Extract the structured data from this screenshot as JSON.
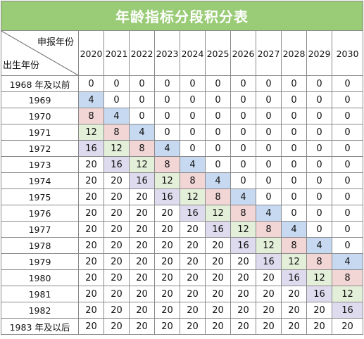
{
  "title": "年龄指标分段积分表",
  "corner": {
    "top": "申报年份",
    "bottom": "出生年份"
  },
  "years": [
    "2020",
    "2021",
    "2022",
    "2023",
    "2024",
    "2025",
    "2026",
    "2027",
    "2028",
    "2029",
    "2030"
  ],
  "rows": [
    {
      "label": "1968 年及以前",
      "values": [
        "0",
        "0",
        "0",
        "0",
        "0",
        "0",
        "0",
        "0",
        "0",
        "0",
        "0"
      ]
    },
    {
      "label": "1969",
      "values": [
        "4",
        "0",
        "0",
        "0",
        "0",
        "0",
        "0",
        "0",
        "0",
        "0",
        "0"
      ]
    },
    {
      "label": "1970",
      "values": [
        "8",
        "4",
        "0",
        "0",
        "0",
        "0",
        "0",
        "0",
        "0",
        "0",
        "0"
      ]
    },
    {
      "label": "1971",
      "values": [
        "12",
        "8",
        "4",
        "0",
        "0",
        "0",
        "0",
        "0",
        "0",
        "0",
        "0"
      ]
    },
    {
      "label": "1972",
      "values": [
        "16",
        "12",
        "8",
        "4",
        "0",
        "0",
        "0",
        "0",
        "0",
        "0",
        "0"
      ]
    },
    {
      "label": "1973",
      "values": [
        "20",
        "16",
        "12",
        "8",
        "4",
        "0",
        "0",
        "0",
        "0",
        "0",
        "0"
      ]
    },
    {
      "label": "1974",
      "values": [
        "20",
        "20",
        "16",
        "12",
        "8",
        "4",
        "0",
        "0",
        "0",
        "0",
        "0"
      ]
    },
    {
      "label": "1975",
      "values": [
        "20",
        "20",
        "20",
        "16",
        "12",
        "8",
        "4",
        "0",
        "0",
        "0",
        "0"
      ]
    },
    {
      "label": "1976",
      "values": [
        "20",
        "20",
        "20",
        "20",
        "16",
        "12",
        "8",
        "4",
        "0",
        "0",
        "0"
      ]
    },
    {
      "label": "1977",
      "values": [
        "20",
        "20",
        "20",
        "20",
        "20",
        "16",
        "12",
        "8",
        "4",
        "0",
        "0"
      ]
    },
    {
      "label": "1978",
      "values": [
        "20",
        "20",
        "20",
        "20",
        "20",
        "20",
        "16",
        "12",
        "8",
        "4",
        "0"
      ]
    },
    {
      "label": "1979",
      "values": [
        "20",
        "20",
        "20",
        "20",
        "20",
        "20",
        "20",
        "16",
        "12",
        "8",
        "4"
      ]
    },
    {
      "label": "1980",
      "values": [
        "20",
        "20",
        "20",
        "20",
        "20",
        "20",
        "20",
        "20",
        "16",
        "12",
        "8"
      ]
    },
    {
      "label": "1981",
      "values": [
        "20",
        "20",
        "20",
        "20",
        "20",
        "20",
        "20",
        "20",
        "20",
        "16",
        "12"
      ]
    },
    {
      "label": "1982",
      "values": [
        "20",
        "20",
        "20",
        "20",
        "20",
        "20",
        "20",
        "20",
        "20",
        "20",
        "16"
      ]
    },
    {
      "label": "1983 年及以后",
      "values": [
        "20",
        "20",
        "20",
        "20",
        "20",
        "20",
        "20",
        "20",
        "20",
        "20",
        "20"
      ]
    }
  ],
  "colors": {
    "title_bg": "#9acc77",
    "v4": "#c6d9f1",
    "v8": "#f2d5d5",
    "v12": "#e3efd8",
    "v16": "#dfdbef",
    "border": "#8a8a8a"
  }
}
